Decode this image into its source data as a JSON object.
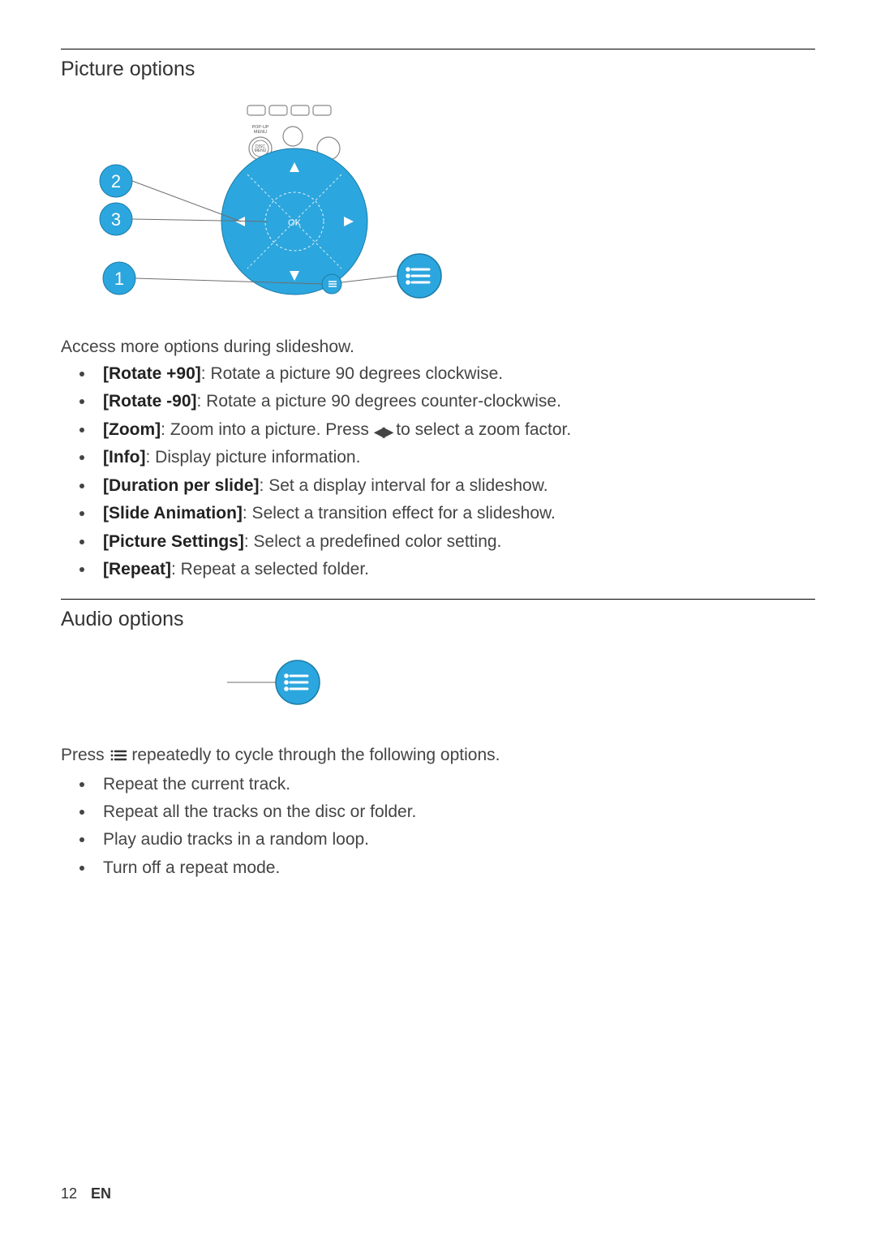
{
  "colors": {
    "accent": "#2CA6DE",
    "accent_dark": "#1b7ca8",
    "line": "#6e6e6e",
    "text": "#444444",
    "bold": "#222222",
    "white": "#ffffff"
  },
  "typography": {
    "body_pt": 16,
    "heading_pt": 19
  },
  "sections": {
    "picture": {
      "title": "Picture options",
      "intro": "Access more options during slideshow.",
      "items": [
        {
          "label": "[Rotate +90]",
          "desc": ": Rotate a picture 90 degrees clockwise."
        },
        {
          "label": "[Rotate -90]",
          "desc": ": Rotate a picture 90 degrees counter-clockwise."
        },
        {
          "label": "[Zoom]",
          "desc_before": ": Zoom into a picture. Press ",
          "desc_after": " to select a zoom factor.",
          "has_arrows": true
        },
        {
          "label": "[Info]",
          "desc": ": Display picture information."
        },
        {
          "label": "[Duration per slide]",
          "desc": ": Set a display interval for a slideshow."
        },
        {
          "label": "[Slide Animation]",
          "desc": ": Select a transition effect for a slideshow."
        },
        {
          "label": "[Picture Settings]",
          "desc": ": Select a predefined color setting."
        },
        {
          "label": "[Repeat]",
          "desc": ": Repeat a selected folder."
        }
      ],
      "diagram": {
        "callouts": [
          "1",
          "2",
          "3"
        ],
        "navpad_text": "OK",
        "labels": {
          "popup": "POP-UP MENU",
          "disc": "DISC MENU"
        }
      }
    },
    "audio": {
      "title": "Audio options",
      "press_before": "Press ",
      "press_after": " repeatedly to cycle through the following options.",
      "items": [
        "Repeat the current track.",
        "Repeat all the tracks on the disc or folder.",
        "Play audio tracks in a random loop.",
        "Turn off a repeat mode."
      ]
    }
  },
  "footer": {
    "page": "12",
    "lang": "EN"
  }
}
